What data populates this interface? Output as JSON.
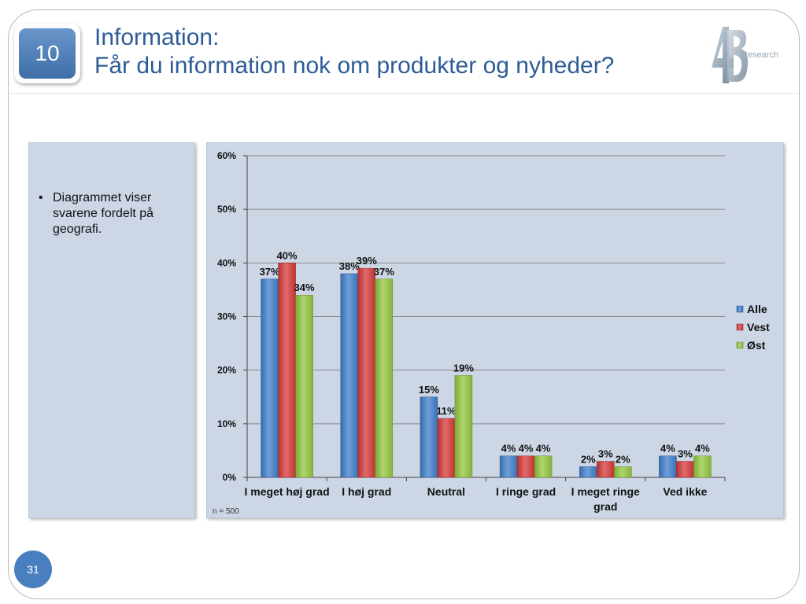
{
  "slide": {
    "number_badge": "10",
    "title_line1": "Information:",
    "title_line2": "Får du information nok om produkter og nyheder?",
    "logo_text": "Research",
    "page_number": "31"
  },
  "side_panel": {
    "bullets": [
      "Diagrammet viser svarene fordelt på geografi."
    ]
  },
  "colors": {
    "Alle": "#3f7fcc",
    "Vest": "#d63a3a",
    "Øst": "#93c83e"
  },
  "chart_data": {
    "type": "bar",
    "categories": [
      "I meget høj grad",
      "I høj grad",
      "Neutral",
      "I ringe grad",
      "I meget ringe grad",
      "Ved ikke"
    ],
    "series": [
      {
        "name": "Alle",
        "values": [
          37,
          38,
          15,
          4,
          2,
          4
        ]
      },
      {
        "name": "Vest",
        "values": [
          40,
          39,
          11,
          4,
          3,
          3
        ]
      },
      {
        "name": "Øst",
        "values": [
          34,
          37,
          19,
          4,
          2,
          4
        ]
      }
    ],
    "y_ticks": [
      "0%",
      "10%",
      "20%",
      "30%",
      "40%",
      "50%",
      "60%"
    ],
    "ylim": [
      0,
      60
    ],
    "value_suffix": "%",
    "legend_position": "right",
    "grid": true,
    "note": "n = 500"
  }
}
